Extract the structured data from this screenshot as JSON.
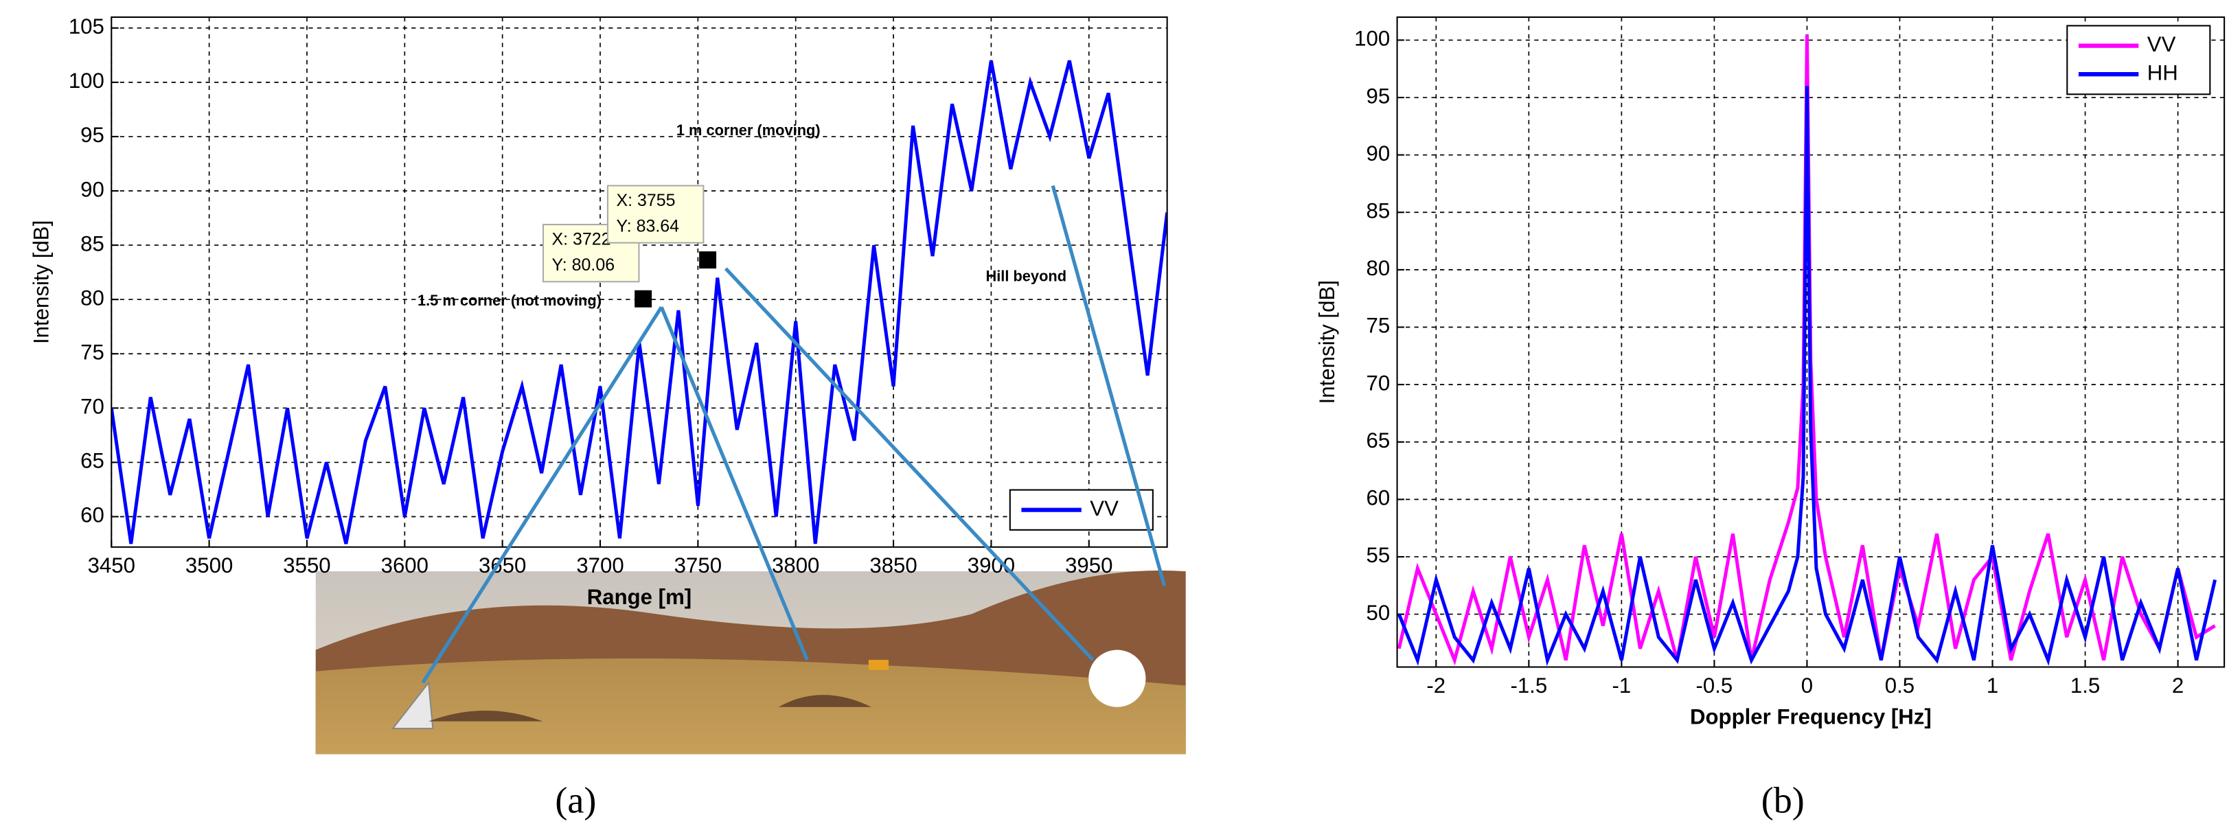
{
  "chart_data": [
    {
      "type": "line",
      "panel_label": "(a)",
      "xlabel": "Range [m]",
      "ylabel": "Intensity [dB]",
      "x": [
        3450,
        3460,
        3470,
        3480,
        3490,
        3500,
        3510,
        3520,
        3530,
        3540,
        3550,
        3560,
        3570,
        3580,
        3590,
        3600,
        3610,
        3620,
        3630,
        3640,
        3650,
        3660,
        3670,
        3680,
        3690,
        3700,
        3710,
        3720,
        3730,
        3740,
        3750,
        3760,
        3770,
        3780,
        3790,
        3800,
        3810,
        3820,
        3830,
        3840,
        3850,
        3860,
        3870,
        3880,
        3890,
        3900,
        3910,
        3920,
        3930,
        3940,
        3950,
        3960,
        3970,
        3980,
        3990
      ],
      "series": [
        {
          "name": "VV",
          "color": "#0000ff",
          "values": [
            70,
            57.5,
            71,
            62,
            69,
            58,
            66,
            74,
            60,
            70,
            58,
            65,
            57.5,
            67,
            72,
            60,
            70,
            63,
            71,
            58,
            66,
            72,
            64,
            74,
            62,
            72,
            58,
            76,
            63,
            79,
            61,
            82,
            68,
            76,
            60,
            78,
            57.5,
            74,
            67,
            85,
            72,
            96,
            84,
            98,
            90,
            102,
            92,
            100,
            95,
            102,
            93,
            99,
            86,
            73,
            88
          ]
        }
      ],
      "xlim": [
        3450,
        3990
      ],
      "ylim": [
        57.2,
        106
      ],
      "xticks": [
        3450,
        3500,
        3550,
        3600,
        3650,
        3700,
        3750,
        3800,
        3850,
        3900,
        3950
      ],
      "yticks": [
        60,
        65,
        70,
        75,
        80,
        85,
        90,
        95,
        100,
        105
      ],
      "grid": true,
      "legend": "lower right",
      "annotations": [
        {
          "x": 3722,
          "y": 80.06,
          "x_label": "X: 3722",
          "y_label": "Y: 80.06",
          "note": "1.5 m corner (not moving)"
        },
        {
          "x": 3755,
          "y": 83.64,
          "x_label": "X: 3755",
          "y_label": "Y: 83.64",
          "note": "1 m corner (moving)"
        }
      ],
      "notes": [
        "Hill beyond"
      ]
    },
    {
      "type": "line",
      "panel_label": "(b)",
      "xlabel": "Doppler Frequency [Hz]",
      "ylabel": "Intensity [dB]",
      "x": [
        -2.2,
        -2.1,
        -2.0,
        -1.9,
        -1.8,
        -1.7,
        -1.6,
        -1.5,
        -1.4,
        -1.3,
        -1.2,
        -1.1,
        -1.0,
        -0.9,
        -0.8,
        -0.7,
        -0.6,
        -0.5,
        -0.4,
        -0.3,
        -0.2,
        -0.1,
        -0.05,
        -0.02,
        0,
        0.02,
        0.05,
        0.1,
        0.2,
        0.3,
        0.4,
        0.5,
        0.6,
        0.7,
        0.8,
        0.9,
        1.0,
        1.1,
        1.2,
        1.3,
        1.4,
        1.5,
        1.6,
        1.7,
        1.8,
        1.9,
        2.0,
        2.1,
        2.2
      ],
      "series": [
        {
          "name": "VV",
          "color": "#ff00ff",
          "values": [
            47,
            54,
            50,
            46,
            52,
            47,
            55,
            48,
            53,
            46,
            56,
            49,
            57,
            47,
            52,
            46,
            55,
            48,
            57,
            46,
            53,
            58,
            61,
            70,
            100.5,
            72,
            60,
            55,
            48,
            56,
            46,
            54,
            49,
            57,
            47,
            53,
            55,
            46,
            52,
            57,
            48,
            53,
            46,
            55,
            50,
            47,
            54,
            48,
            49
          ]
        },
        {
          "name": "HH",
          "color": "#0000ff",
          "values": [
            50,
            46,
            53,
            48,
            46,
            51,
            47,
            54,
            46,
            50,
            47,
            52,
            46,
            55,
            48,
            46,
            53,
            47,
            51,
            46,
            49,
            52,
            55,
            62,
            96,
            66,
            54,
            50,
            47,
            53,
            46,
            55,
            48,
            46,
            52,
            46,
            56,
            47,
            50,
            46,
            53,
            48,
            55,
            46,
            51,
            47,
            54,
            46,
            53
          ]
        }
      ],
      "xlim": [
        -2.21,
        2.25
      ],
      "ylim": [
        45.4,
        102
      ],
      "xticks": [
        -2,
        -1.5,
        -1,
        -0.5,
        0,
        0.5,
        1,
        1.5,
        2
      ],
      "yticks": [
        50,
        55,
        60,
        65,
        70,
        75,
        80,
        85,
        90,
        95,
        100
      ],
      "grid": true,
      "legend": "upper right"
    }
  ]
}
